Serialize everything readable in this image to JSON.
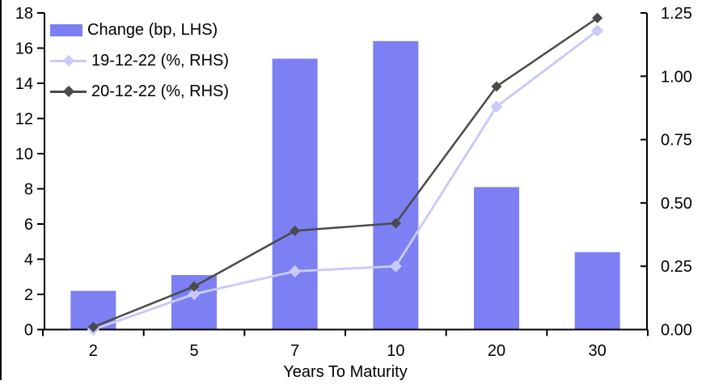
{
  "chart_data": {
    "type": "bar+line combo",
    "title": "",
    "xlabel": "Years To Maturity",
    "categories": [
      "2",
      "5",
      "7",
      "10",
      "20",
      "30"
    ],
    "series": [
      {
        "name": "Change (bp, LHS)",
        "type": "bar",
        "axis": "left",
        "color": "#7C80F2",
        "values": [
          2.2,
          3.1,
          15.4,
          16.4,
          8.1,
          4.4
        ]
      },
      {
        "name": "19-12-22 (%, RHS)",
        "type": "line",
        "axis": "right",
        "color": "#C8CBF8",
        "marker": "diamond",
        "values": [
          0.0,
          0.14,
          0.23,
          0.25,
          0.88,
          1.18
        ]
      },
      {
        "name": "20-12-22 (%, RHS)",
        "type": "line",
        "axis": "right",
        "color": "#4A4A4A",
        "marker": "diamond",
        "values": [
          0.01,
          0.17,
          0.39,
          0.42,
          0.96,
          1.23
        ]
      }
    ],
    "left_axis": {
      "min": 0,
      "max": 18,
      "step": 2,
      "tick_labels": [
        "0",
        "2",
        "4",
        "6",
        "8",
        "10",
        "12",
        "14",
        "16",
        "18"
      ]
    },
    "right_axis": {
      "min": 0,
      "max": 1.25,
      "step": 0.25,
      "tick_labels": [
        "0.00",
        "0.25",
        "0.50",
        "0.75",
        "1.00",
        "1.25"
      ]
    },
    "grid": false,
    "legend_position": "top-left",
    "axis_color": "#000000",
    "text_color": "#000000"
  }
}
